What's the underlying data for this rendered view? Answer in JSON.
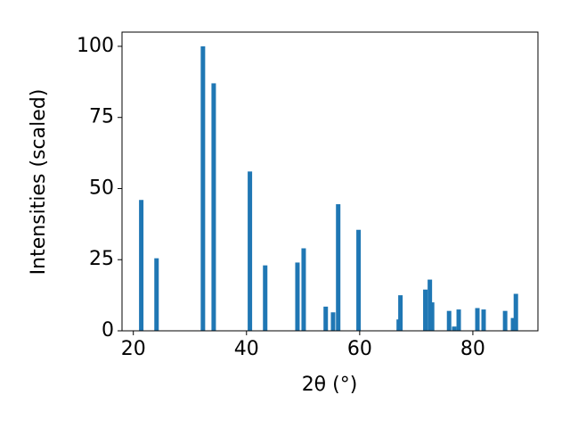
{
  "chart_data": {
    "type": "bar",
    "x_label": "2θ (°)",
    "y_label": "Intensities (scaled)",
    "x": [
      21.4,
      24.1,
      32.3,
      34.2,
      40.6,
      43.3,
      49.0,
      50.1,
      54.0,
      55.3,
      56.2,
      59.8,
      66.9,
      67.2,
      71.6,
      72.4,
      72.8,
      75.8,
      76.7,
      77.5,
      80.8,
      81.9,
      85.7,
      87.1,
      87.6
    ],
    "values": [
      46,
      25.5,
      100,
      87,
      56,
      23,
      24,
      29,
      8.5,
      6.5,
      44.5,
      35.5,
      4,
      12.5,
      14.5,
      18,
      10,
      7,
      1.5,
      7.5,
      8,
      7.5,
      7,
      4.5,
      13
    ],
    "color": "#1f77b4",
    "xlim": [
      18,
      91.5
    ],
    "xticks": [
      20,
      40,
      60,
      80
    ],
    "ylim": [
      0,
      105
    ],
    "yticks": [
      0,
      25,
      50,
      75,
      100
    ]
  }
}
